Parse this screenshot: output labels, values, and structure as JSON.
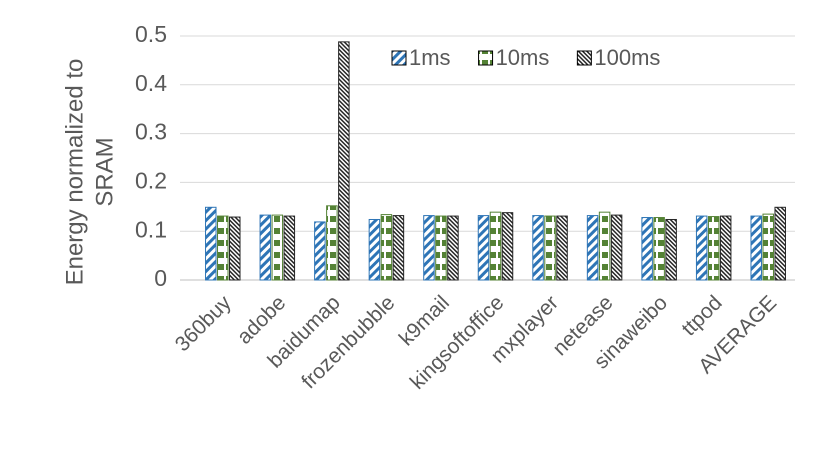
{
  "chart_data": {
    "type": "bar",
    "y_label": [
      "Energy normalized to",
      "SRAM"
    ],
    "categories": [
      "360buy",
      "adobe",
      "baidumap",
      "frozenbubble",
      "k9mail",
      "kingsoftoffice",
      "mxplayer",
      "netease",
      "sinaweibo",
      "ttpod",
      "AVERAGE"
    ],
    "series": [
      {
        "name": "1ms",
        "color": "#2e75b6",
        "hatch": "stripes",
        "values": [
          0.149,
          0.133,
          0.119,
          0.124,
          0.132,
          0.132,
          0.132,
          0.132,
          0.128,
          0.131,
          0.131
        ]
      },
      {
        "name": "10ms",
        "color": "#548235",
        "hatch": "checker",
        "values": [
          0.131,
          0.133,
          0.152,
          0.134,
          0.131,
          0.139,
          0.131,
          0.139,
          0.128,
          0.13,
          0.135
        ]
      },
      {
        "name": "100ms",
        "color": "#262626",
        "hatch": "dense",
        "values": [
          0.129,
          0.131,
          0.488,
          0.132,
          0.131,
          0.138,
          0.131,
          0.133,
          0.124,
          0.131,
          0.149
        ]
      }
    ],
    "ylim": [
      0,
      0.5
    ],
    "yticks": [
      0,
      0.1,
      0.2,
      0.3,
      0.4,
      0.5
    ],
    "grid": true,
    "legend": "top"
  }
}
